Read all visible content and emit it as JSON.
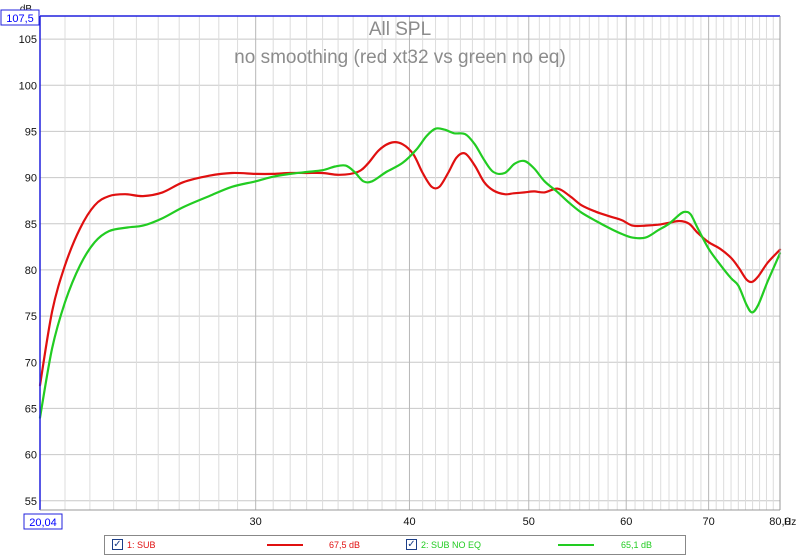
{
  "chart_data": {
    "type": "line",
    "title": "All SPL",
    "subtitle": "no smoothing (red xt32 vs green no eq)",
    "ylabel": "dB",
    "xlabel": "Hz",
    "x_scale": "log",
    "xlim": [
      20.04,
      80.0
    ],
    "ylim": [
      54,
      107.5
    ],
    "y_ticks": [
      "55",
      "60",
      "65",
      "70",
      "75",
      "80",
      "85",
      "90",
      "95",
      "100",
      "105"
    ],
    "x_ticks": [
      "30",
      "40",
      "50",
      "60",
      "70",
      "80,0"
    ],
    "x_min_label": "20,04",
    "y_max_label": "107,5",
    "grid": true,
    "series": [
      {
        "name": "1: SUB",
        "color": "#e01010",
        "level": "67,5 dB",
        "points": [
          [
            20.04,
            67.5
          ],
          [
            20.5,
            75.5
          ],
          [
            21.0,
            80.5
          ],
          [
            21.6,
            84.5
          ],
          [
            22.2,
            87.0
          ],
          [
            22.8,
            88.0
          ],
          [
            23.5,
            88.2
          ],
          [
            24.3,
            88.0
          ],
          [
            25.2,
            88.4
          ],
          [
            26.2,
            89.5
          ],
          [
            27.5,
            90.2
          ],
          [
            28.7,
            90.5
          ],
          [
            30.0,
            90.4
          ],
          [
            31.0,
            90.4
          ],
          [
            32.0,
            90.5
          ],
          [
            33.0,
            90.5
          ],
          [
            34.0,
            90.5
          ],
          [
            35.1,
            90.3
          ],
          [
            36.3,
            90.6
          ],
          [
            37.0,
            91.5
          ],
          [
            37.8,
            93.0
          ],
          [
            38.7,
            93.8
          ],
          [
            39.5,
            93.6
          ],
          [
            40.3,
            92.5
          ],
          [
            41.0,
            90.5
          ],
          [
            41.7,
            89.0
          ],
          [
            42.3,
            89.0
          ],
          [
            43.0,
            90.5
          ],
          [
            43.7,
            92.2
          ],
          [
            44.4,
            92.6
          ],
          [
            45.2,
            91.3
          ],
          [
            46.0,
            89.5
          ],
          [
            46.8,
            88.6
          ],
          [
            47.8,
            88.2
          ],
          [
            48.6,
            88.3
          ],
          [
            49.6,
            88.4
          ],
          [
            50.5,
            88.5
          ],
          [
            51.5,
            88.4
          ],
          [
            52.8,
            88.8
          ],
          [
            54.0,
            88.0
          ],
          [
            55.2,
            87.0
          ],
          [
            56.7,
            86.3
          ],
          [
            58.2,
            85.8
          ],
          [
            59.5,
            85.4
          ],
          [
            60.7,
            84.8
          ],
          [
            62.2,
            84.8
          ],
          [
            63.7,
            84.9
          ],
          [
            65.0,
            85.1
          ],
          [
            66.3,
            85.3
          ],
          [
            67.5,
            85.0
          ],
          [
            68.6,
            84.0
          ],
          [
            70.0,
            83.0
          ],
          [
            71.5,
            82.3
          ],
          [
            73.0,
            81.3
          ],
          [
            74.0,
            80.3
          ],
          [
            75.1,
            79.0
          ],
          [
            75.9,
            78.7
          ],
          [
            76.8,
            79.3
          ],
          [
            78.2,
            80.8
          ],
          [
            80.0,
            82.2
          ]
        ]
      },
      {
        "name": "2: SUB NO EQ",
        "color": "#22cc22",
        "level": "65,1 dB",
        "points": [
          [
            20.04,
            64.0
          ],
          [
            20.5,
            71.5
          ],
          [
            21.0,
            76.5
          ],
          [
            21.6,
            80.5
          ],
          [
            22.2,
            83.0
          ],
          [
            22.8,
            84.2
          ],
          [
            23.6,
            84.6
          ],
          [
            24.3,
            84.8
          ],
          [
            25.2,
            85.6
          ],
          [
            26.2,
            86.8
          ],
          [
            27.5,
            88.0
          ],
          [
            28.7,
            89.0
          ],
          [
            30.0,
            89.6
          ],
          [
            31.0,
            90.1
          ],
          [
            32.0,
            90.4
          ],
          [
            33.0,
            90.6
          ],
          [
            34.0,
            90.8
          ],
          [
            34.8,
            91.2
          ],
          [
            35.5,
            91.3
          ],
          [
            36.1,
            90.6
          ],
          [
            36.7,
            89.6
          ],
          [
            37.3,
            89.6
          ],
          [
            38.3,
            90.6
          ],
          [
            39.5,
            91.6
          ],
          [
            40.5,
            93.0
          ],
          [
            41.3,
            94.5
          ],
          [
            42.0,
            95.3
          ],
          [
            42.7,
            95.2
          ],
          [
            43.5,
            94.8
          ],
          [
            44.4,
            94.7
          ],
          [
            45.2,
            93.6
          ],
          [
            46.0,
            91.9
          ],
          [
            46.8,
            90.6
          ],
          [
            47.8,
            90.5
          ],
          [
            48.7,
            91.5
          ],
          [
            49.6,
            91.8
          ],
          [
            50.5,
            91.0
          ],
          [
            51.5,
            89.6
          ],
          [
            52.8,
            88.4
          ],
          [
            54.0,
            87.2
          ],
          [
            55.2,
            86.2
          ],
          [
            56.7,
            85.3
          ],
          [
            58.2,
            84.5
          ],
          [
            59.5,
            83.9
          ],
          [
            60.7,
            83.5
          ],
          [
            62.2,
            83.5
          ],
          [
            63.7,
            84.3
          ],
          [
            65.0,
            85.0
          ],
          [
            66.3,
            86.0
          ],
          [
            67.0,
            86.3
          ],
          [
            67.7,
            86.0
          ],
          [
            68.6,
            84.5
          ],
          [
            70.0,
            82.3
          ],
          [
            71.5,
            80.6
          ],
          [
            73.0,
            79.1
          ],
          [
            74.0,
            78.3
          ],
          [
            75.1,
            76.3
          ],
          [
            75.9,
            75.4
          ],
          [
            76.8,
            76.2
          ],
          [
            78.2,
            78.8
          ],
          [
            80.0,
            81.8
          ]
        ]
      }
    ]
  }
}
